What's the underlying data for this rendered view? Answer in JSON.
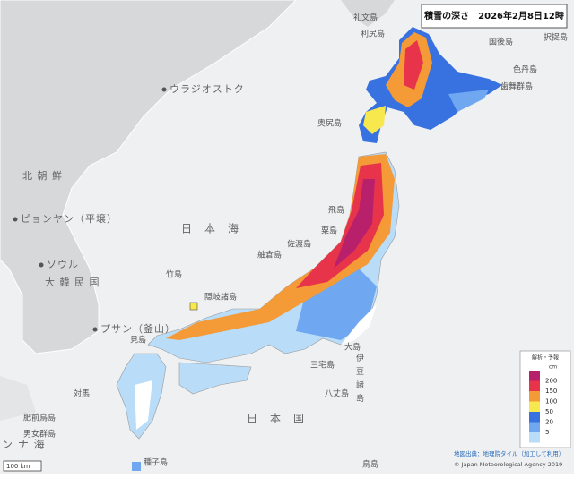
{
  "header": {
    "title": "積雪の深さ　2026年2月8日12時"
  },
  "places": {
    "rebun": "礼文島",
    "rishiri": "利尻島",
    "kunashiri": "国後島",
    "etorofu": "択捉島",
    "shikotan": "色丹島",
    "habomai": "歯舞群島",
    "vladivostok": "ウラジオストク",
    "okushiri": "奥尻島",
    "north_korea": "北 朝 鮮",
    "pyongyang": "ピョンヤン（平壌）",
    "sea_of_japan": "日　本　海",
    "tobishima": "飛島",
    "awashima": "粟島",
    "sado": "佐渡島",
    "hegura": "舳倉島",
    "seoul": "ソウル",
    "south_korea": "大 韓 民 国",
    "takeshima": "竹島",
    "oki": "隠岐諸島",
    "busan": "プサン（釜山）",
    "mishima": "見島",
    "oshima": "大島",
    "izu": "伊豆諸島",
    "miyake": "三宅島",
    "hachijo": "八丈島",
    "tsushima": "対馬",
    "hizen_torishima": "肥前鳥島",
    "danjo": "男女群島",
    "japan": "日　本　国",
    "tanegashima": "種子島",
    "torishima": "鳥島",
    "east_china_sea": "ン ナ 海"
  },
  "legend": {
    "title": "解析・予報",
    "unit": "cm",
    "labels": [
      "200",
      "150",
      "100",
      "50",
      "20",
      "5"
    ],
    "colors": [
      "#b8206c",
      "#e8344a",
      "#f49a36",
      "#f7e84e",
      "#3772e0",
      "#6fa8f0",
      "#b9dcf8"
    ]
  },
  "footer": {
    "source": "地図出典：地理院タイル（加工して利用）",
    "copyright": "© Japan Meteorological Agency 2019",
    "scale": "100 km"
  }
}
